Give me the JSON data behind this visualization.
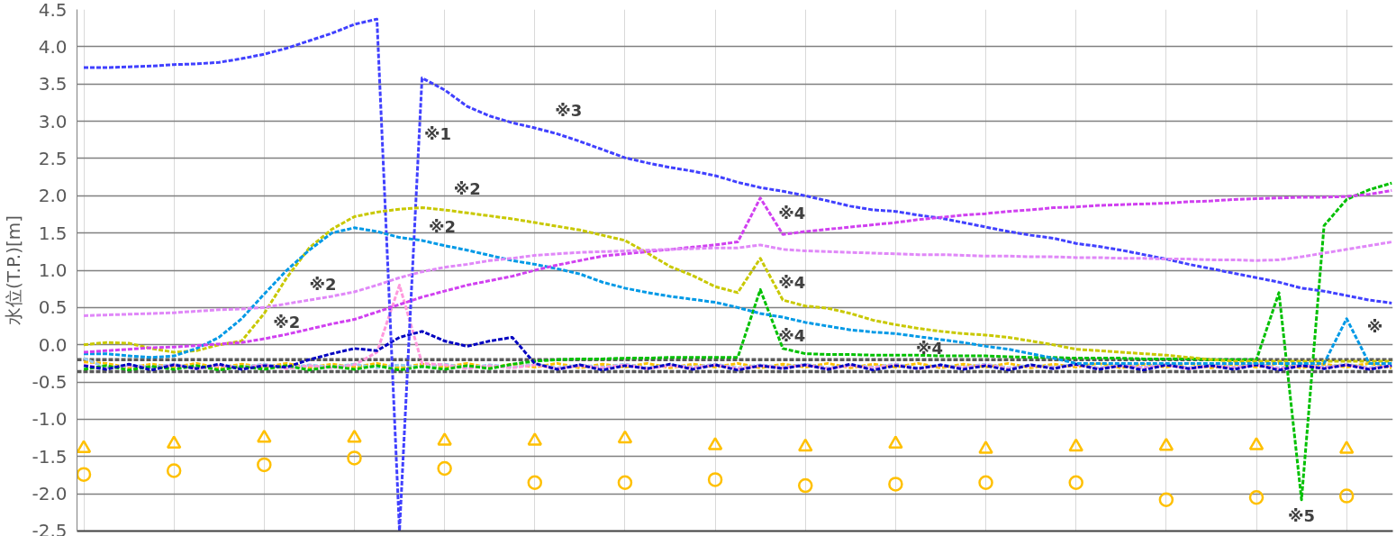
{
  "chart_data": {
    "type": "line",
    "ylabel": "水位(T.P.)[m]",
    "categories": [
      null,
      null,
      null,
      null,
      null,
      null,
      null,
      null,
      null,
      null,
      null,
      null,
      null,
      null,
      null,
      null,
      null,
      null,
      null,
      null,
      null,
      null,
      null,
      null,
      null,
      null,
      null,
      null,
      null,
      null,
      null,
      null,
      null,
      null,
      null,
      null,
      null,
      null,
      null,
      null,
      null,
      null,
      null,
      null,
      null,
      null,
      null,
      null,
      null,
      null,
      null,
      null,
      null,
      null,
      null,
      null,
      null,
      null,
      null
    ],
    "ylim": [
      -2.5,
      4.5
    ],
    "yticks": [
      {
        "value": -2.5,
        "label": "-2.5"
      },
      {
        "value": -2,
        "label": "-2.0"
      },
      {
        "value": -1.5,
        "label": "-1.5"
      },
      {
        "value": -1,
        "label": "-1.0"
      },
      {
        "value": -0.5,
        "label": "-0.5"
      },
      {
        "value": 0,
        "label": "0.0"
      },
      {
        "value": 0.5,
        "label": "0.5"
      },
      {
        "value": 1,
        "label": "1.0"
      },
      {
        "value": 1.5,
        "label": "1.5"
      },
      {
        "value": 2,
        "label": "2.0"
      },
      {
        "value": 2.5,
        "label": "2.5"
      },
      {
        "value": 3,
        "label": "3.0"
      },
      {
        "value": 3.5,
        "label": "3.5"
      },
      {
        "value": 4,
        "label": "4.0"
      },
      {
        "value": 4.5,
        "label": "4.5"
      }
    ],
    "grid": true,
    "tick_labels": "y",
    "line_style": "dashed",
    "ref_lines": [
      {
        "axis": "y",
        "value": -0.2,
        "color": "#595959",
        "line_style": "dashed"
      },
      {
        "axis": "y",
        "value": -0.36,
        "color": "#595959",
        "line_style": "dashed"
      }
    ],
    "series": [
      {
        "color": "#0000c0",
        "values": [
          -0.28,
          -0.33,
          -0.26,
          -0.34,
          -0.27,
          -0.32,
          -0.26,
          -0.33,
          -0.28,
          -0.3,
          -0.2,
          -0.12,
          -0.05,
          -0.08,
          0.1,
          0.18,
          0.05,
          -0.02,
          0.05,
          0.1,
          -0.25,
          -0.33,
          -0.27,
          -0.34,
          -0.28,
          -0.32,
          -0.26,
          -0.33,
          -0.27,
          -0.34,
          -0.28,
          -0.32,
          -0.27,
          -0.33,
          -0.26,
          -0.34,
          -0.28,
          -0.32,
          -0.27,
          -0.33,
          -0.28,
          -0.34,
          -0.27,
          -0.32,
          -0.26,
          -0.33,
          -0.28,
          -0.34,
          -0.27,
          -0.32,
          -0.28,
          -0.33,
          -0.27,
          -0.34,
          -0.28,
          -0.32,
          -0.27,
          -0.33,
          -0.28
        ]
      },
      {
        "color": "#99ccee",
        "values": [
          -0.18,
          -0.31,
          -0.27,
          -0.3,
          -0.26,
          -0.31,
          -0.27,
          -0.3,
          -0.26,
          -0.31,
          -0.27,
          -0.3,
          -0.26,
          -0.31,
          -0.27,
          -0.3,
          -0.26,
          -0.31,
          -0.27,
          -0.3,
          -0.26,
          -0.31,
          -0.27,
          -0.3,
          -0.26,
          -0.31,
          -0.27,
          -0.3,
          -0.26,
          -0.31,
          -0.27,
          -0.3,
          -0.26,
          -0.31,
          -0.27,
          -0.3,
          -0.26,
          -0.31,
          -0.27,
          -0.3,
          -0.26,
          -0.31,
          -0.27,
          -0.3,
          -0.26,
          -0.31,
          -0.27,
          -0.3,
          -0.26,
          -0.31,
          -0.27,
          -0.3,
          -0.26,
          -0.31,
          -0.27,
          -0.3,
          -0.26,
          -0.31,
          -0.27
        ]
      },
      {
        "color": "#ffc000",
        "values": [
          -0.23,
          -0.25,
          -0.31,
          -0.26,
          -0.3,
          -0.25,
          -0.31,
          -0.26,
          -0.3,
          -0.25,
          -0.31,
          -0.26,
          -0.3,
          -0.25,
          -0.31,
          -0.26,
          -0.3,
          -0.25,
          -0.31,
          -0.26,
          -0.3,
          -0.25,
          -0.31,
          -0.26,
          -0.3,
          -0.25,
          -0.31,
          -0.26,
          -0.3,
          -0.25,
          -0.31,
          -0.26,
          -0.3,
          -0.25,
          -0.31,
          -0.26,
          -0.3,
          -0.25,
          -0.31,
          -0.26,
          -0.3,
          -0.25,
          -0.31,
          -0.26,
          -0.3,
          -0.25,
          -0.31,
          -0.26,
          -0.3,
          -0.25,
          -0.31,
          -0.26,
          -0.3,
          -0.25,
          -0.31,
          -0.26,
          -0.3,
          -0.25,
          -0.31
        ]
      },
      {
        "color": "#ff99dd",
        "values": [
          -0.27,
          -0.32,
          -0.28,
          -0.31,
          -0.27,
          -0.32,
          -0.28,
          -0.31,
          -0.27,
          -0.32,
          -0.28,
          -0.31,
          -0.27,
          -0.1,
          0.8,
          -0.25,
          -0.27,
          -0.32,
          -0.28,
          -0.31,
          -0.27,
          -0.32,
          -0.28,
          -0.31,
          -0.27,
          -0.32,
          -0.28,
          -0.31,
          -0.27,
          -0.32,
          -0.28,
          -0.31,
          -0.27,
          -0.32,
          -0.28,
          -0.31,
          -0.27,
          -0.32,
          -0.28,
          -0.31,
          -0.27,
          -0.32,
          -0.28,
          -0.31,
          -0.27,
          -0.32,
          -0.28,
          -0.31,
          -0.27,
          -0.32,
          -0.28,
          -0.31,
          -0.27,
          -0.32,
          -0.28,
          -0.31,
          -0.27,
          -0.32,
          -0.28
        ]
      },
      {
        "color": "#00c000",
        "values": [
          -0.33,
          -0.28,
          -0.34,
          -0.29,
          -0.33,
          -0.28,
          -0.34,
          -0.29,
          -0.33,
          -0.28,
          -0.34,
          -0.29,
          -0.33,
          -0.28,
          -0.34,
          -0.29,
          -0.33,
          -0.28,
          -0.32,
          -0.26,
          -0.22,
          -0.2,
          -0.19,
          -0.19,
          -0.18,
          -0.18,
          -0.17,
          -0.17,
          -0.17,
          -0.17,
          0.74,
          -0.05,
          -0.12,
          -0.13,
          -0.13,
          -0.14,
          -0.14,
          -0.14,
          -0.15,
          -0.15,
          -0.15,
          -0.16,
          -0.17,
          -0.17,
          -0.18,
          -0.18,
          -0.18,
          -0.19,
          -0.19,
          -0.19,
          -0.2,
          -0.2,
          -0.2,
          0.7,
          -2.08,
          1.6,
          1.95,
          2.08,
          2.17
        ]
      },
      {
        "color": "#4040ff",
        "values": [
          3.72,
          3.72,
          3.73,
          3.74,
          3.76,
          3.77,
          3.79,
          3.84,
          3.9,
          3.98,
          4.08,
          4.18,
          4.3,
          4.37,
          -2.5,
          3.58,
          3.42,
          3.2,
          3.07,
          2.98,
          2.91,
          2.83,
          2.73,
          2.62,
          2.51,
          2.44,
          2.38,
          2.33,
          2.27,
          2.18,
          2.11,
          2.06,
          2.0,
          1.93,
          1.86,
          1.81,
          1.79,
          1.74,
          1.7,
          1.64,
          1.58,
          1.52,
          1.47,
          1.43,
          1.36,
          1.32,
          1.27,
          1.21,
          1.15,
          1.08,
          1.02,
          0.96,
          0.9,
          0.84,
          0.76,
          0.72,
          0.66,
          0.6,
          0.56
        ]
      },
      {
        "color": "#c8c800",
        "values": [
          0.0,
          0.03,
          0.02,
          -0.05,
          -0.1,
          -0.08,
          0.0,
          0.05,
          0.42,
          0.9,
          1.3,
          1.55,
          1.72,
          1.78,
          1.82,
          1.84,
          1.81,
          1.77,
          1.73,
          1.69,
          1.64,
          1.59,
          1.54,
          1.47,
          1.4,
          1.23,
          1.05,
          0.93,
          0.78,
          0.7,
          1.16,
          0.6,
          0.52,
          0.49,
          0.42,
          0.33,
          0.27,
          0.22,
          0.18,
          0.15,
          0.13,
          0.1,
          0.05,
          0.0,
          -0.06,
          -0.08,
          -0.1,
          -0.12,
          -0.14,
          -0.17,
          -0.2,
          -0.22,
          -0.22,
          -0.22,
          -0.22,
          -0.22,
          -0.22,
          -0.22,
          -0.22
        ]
      },
      {
        "color": "#0099e6",
        "values": [
          -0.12,
          -0.12,
          -0.15,
          -0.17,
          -0.15,
          -0.05,
          0.1,
          0.35,
          0.68,
          1.0,
          1.27,
          1.5,
          1.57,
          1.52,
          1.44,
          1.4,
          1.33,
          1.27,
          1.2,
          1.13,
          1.08,
          1.02,
          0.95,
          0.84,
          0.76,
          0.7,
          0.65,
          0.61,
          0.57,
          0.5,
          0.42,
          0.37,
          0.3,
          0.25,
          0.2,
          0.17,
          0.15,
          0.11,
          0.07,
          0.03,
          -0.02,
          -0.06,
          -0.12,
          -0.18,
          -0.25,
          -0.25,
          -0.25,
          -0.25,
          -0.25,
          -0.25,
          -0.25,
          -0.25,
          -0.25,
          -0.25,
          -0.25,
          -0.25,
          0.35,
          -0.25,
          -0.25
        ]
      },
      {
        "color": "#d040f0",
        "values": [
          -0.1,
          -0.08,
          -0.06,
          -0.04,
          -0.03,
          -0.01,
          0.01,
          0.03,
          0.08,
          0.14,
          0.21,
          0.28,
          0.34,
          0.44,
          0.54,
          0.64,
          0.72,
          0.8,
          0.86,
          0.92,
          1.0,
          1.07,
          1.13,
          1.19,
          1.22,
          1.25,
          1.28,
          1.31,
          1.34,
          1.38,
          1.97,
          1.48,
          1.52,
          1.55,
          1.58,
          1.61,
          1.64,
          1.68,
          1.71,
          1.74,
          1.76,
          1.79,
          1.81,
          1.84,
          1.85,
          1.87,
          1.88,
          1.89,
          1.9,
          1.92,
          1.93,
          1.95,
          1.96,
          1.97,
          1.98,
          1.98,
          1.99,
          2.02,
          2.07
        ]
      },
      {
        "color": "#e088f8",
        "values": [
          0.39,
          0.4,
          0.41,
          0.42,
          0.43,
          0.45,
          0.47,
          0.48,
          0.5,
          0.55,
          0.6,
          0.65,
          0.71,
          0.8,
          0.9,
          0.98,
          1.04,
          1.08,
          1.13,
          1.16,
          1.2,
          1.22,
          1.24,
          1.25,
          1.26,
          1.27,
          1.28,
          1.29,
          1.3,
          1.3,
          1.34,
          1.28,
          1.26,
          1.25,
          1.24,
          1.23,
          1.22,
          1.21,
          1.21,
          1.2,
          1.19,
          1.19,
          1.18,
          1.18,
          1.17,
          1.17,
          1.16,
          1.16,
          1.15,
          1.15,
          1.14,
          1.14,
          1.13,
          1.14,
          1.18,
          1.23,
          1.28,
          1.33,
          1.38
        ]
      },
      {
        "type": "scatter",
        "marker": "triangle",
        "color": "#ffc000",
        "values": [
          -1.39,
          null,
          null,
          null,
          -1.33,
          null,
          null,
          null,
          -1.25,
          null,
          null,
          null,
          -1.25,
          null,
          null,
          null,
          -1.29,
          null,
          null,
          null,
          -1.29,
          null,
          null,
          null,
          -1.26,
          null,
          null,
          null,
          -1.35,
          null,
          null,
          null,
          -1.37,
          null,
          null,
          null,
          -1.33,
          null,
          null,
          null,
          -1.4,
          null,
          null,
          null,
          -1.37,
          null,
          null,
          null,
          -1.36,
          null,
          null,
          null,
          -1.35,
          null,
          null,
          null,
          -1.4,
          null,
          null
        ]
      },
      {
        "type": "scatter",
        "marker": "circle",
        "color": "#ffc000",
        "values": [
          -1.74,
          null,
          null,
          null,
          -1.69,
          null,
          null,
          null,
          -1.61,
          null,
          null,
          null,
          -1.52,
          null,
          null,
          null,
          -1.66,
          null,
          null,
          null,
          -1.85,
          null,
          null,
          null,
          -1.85,
          null,
          null,
          null,
          -1.81,
          null,
          null,
          null,
          -1.89,
          null,
          null,
          null,
          -1.87,
          null,
          null,
          null,
          -1.85,
          null,
          null,
          null,
          -1.85,
          null,
          null,
          null,
          -2.08,
          null,
          null,
          null,
          -2.05,
          null,
          null,
          null,
          -2.03,
          null,
          null
        ]
      }
    ],
    "annotations": [
      "※1",
      "※3",
      "※2",
      "※2",
      "※2",
      "※2",
      "※4",
      "※4",
      "※4",
      "※4",
      "※5",
      "※"
    ]
  }
}
